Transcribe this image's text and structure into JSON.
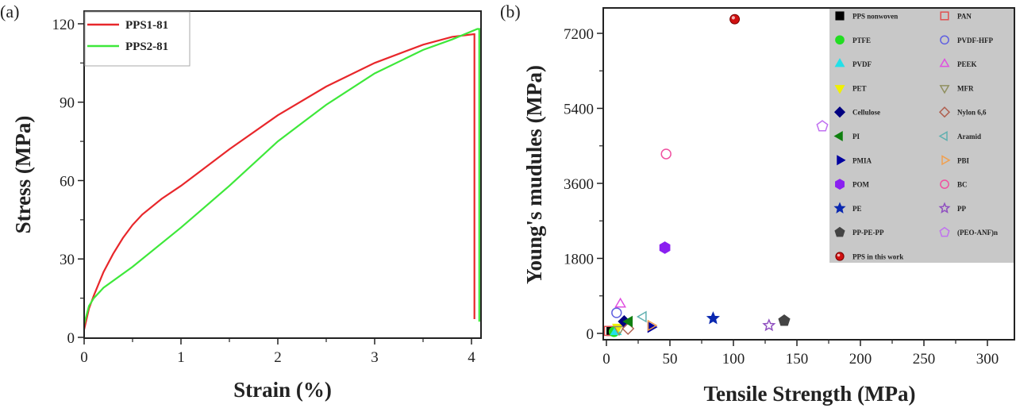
{
  "chart_data": [
    {
      "panel_label": "(a)",
      "type": "line",
      "xlabel": "Strain (%)",
      "ylabel": "Stress (MPa)",
      "xlim": [
        0,
        4.1
      ],
      "ylim": [
        0,
        125
      ],
      "xticks": [
        "0",
        "1",
        "2",
        "3",
        "4"
      ],
      "yticks": [
        "0",
        "30",
        "60",
        "90",
        "120"
      ],
      "legend_position": "top-left",
      "grid": false,
      "series": [
        {
          "name": "PPS1-81",
          "color": "#e8272b",
          "x": [
            0,
            0.05,
            0.1,
            0.2,
            0.3,
            0.4,
            0.5,
            0.6,
            0.8,
            1.0,
            1.5,
            2.0,
            2.5,
            3.0,
            3.5,
            3.8,
            4.02,
            4.03,
            4.03
          ],
          "y": [
            3,
            11,
            16,
            25,
            32,
            38,
            43,
            47,
            53,
            58,
            72,
            85,
            96,
            105,
            112,
            115,
            116,
            116,
            7
          ]
        },
        {
          "name": "PPS2-81",
          "color": "#3ee83a",
          "x": [
            0,
            0.05,
            0.1,
            0.2,
            0.5,
            1.0,
            1.5,
            2.0,
            2.5,
            3.0,
            3.5,
            3.8,
            4.06,
            4.08,
            4.08
          ],
          "y": [
            5,
            12,
            15,
            19,
            27,
            42,
            58,
            75,
            89,
            101,
            110,
            114,
            118,
            118,
            6
          ]
        }
      ]
    },
    {
      "panel_label": "(b)",
      "type": "scatter",
      "xlabel": "Tensile Strength (MPa)",
      "ylabel": "Young's mudules (MPa)",
      "xlim": [
        -2,
        322
      ],
      "ylim": [
        -150,
        7700
      ],
      "xticks": [
        "0",
        "50",
        "100",
        "150",
        "200",
        "250",
        "300"
      ],
      "yticks": [
        "0",
        "1800",
        "3600",
        "5400",
        "7200"
      ],
      "legend_position": "top-right",
      "legend_background": "#c8c8c8",
      "grid": false,
      "series": [
        {
          "name": "PPS nonwoven",
          "marker": "square",
          "filled": true,
          "color": "#000000",
          "x": [
            4
          ],
          "y": [
            60
          ]
        },
        {
          "name": "PAN",
          "marker": "square",
          "filled": false,
          "color": "#e05050",
          "x": [
            2
          ],
          "y": [
            60
          ]
        },
        {
          "name": "PTFE",
          "marker": "circle",
          "filled": true,
          "color": "#22dd22",
          "x": [
            6
          ],
          "y": [
            40
          ]
        },
        {
          "name": "PVDF-HFP",
          "marker": "circle",
          "filled": false,
          "color": "#6060e0",
          "x": [
            8
          ],
          "y": [
            495
          ]
        },
        {
          "name": "PVDF",
          "marker": "triangle-up",
          "filled": true,
          "color": "#22e0e8",
          "x": [
            7.5
          ],
          "y": [
            40
          ]
        },
        {
          "name": "PEEK",
          "marker": "triangle-up",
          "filled": false,
          "color": "#e050e0",
          "x": [
            11
          ],
          "y": [
            700
          ]
        },
        {
          "name": "PET",
          "marker": "triangle-down",
          "filled": true,
          "color": "#f0f000",
          "x": [
            9
          ],
          "y": [
            150
          ]
        },
        {
          "name": "MFR",
          "marker": "triangle-down",
          "filled": false,
          "color": "#909060",
          "x": [
            10
          ],
          "y": [
            95
          ]
        },
        {
          "name": "Cellulose",
          "marker": "diamond",
          "filled": true,
          "color": "#000080",
          "x": [
            14
          ],
          "y": [
            285
          ]
        },
        {
          "name": "Nylon 6,6",
          "marker": "diamond",
          "filled": false,
          "color": "#b06050",
          "x": [
            17
          ],
          "y": [
            115
          ]
        },
        {
          "name": "PI",
          "marker": "triangle-left",
          "filled": true,
          "color": "#108010",
          "x": [
            18
          ],
          "y": [
            285
          ]
        },
        {
          "name": "Aramid",
          "marker": "triangle-left",
          "filled": false,
          "color": "#60b0b0",
          "x": [
            29
          ],
          "y": [
            400
          ]
        },
        {
          "name": "PMIA",
          "marker": "triangle-right",
          "filled": true,
          "color": "#0000a0",
          "x": [
            35
          ],
          "y": [
            150
          ]
        },
        {
          "name": "PBI",
          "marker": "triangle-right",
          "filled": false,
          "color": "#f0a050",
          "x": [
            35
          ],
          "y": [
            190
          ]
        },
        {
          "name": "POM",
          "marker": "hexagon",
          "filled": true,
          "color": "#8a20f0",
          "x": [
            46
          ],
          "y": [
            2057
          ]
        },
        {
          "name": "BC",
          "marker": "circle",
          "filled": false,
          "color": "#f050a0",
          "x": [
            47
          ],
          "y": [
            4305
          ]
        },
        {
          "name": "PE",
          "marker": "star",
          "filled": true,
          "color": "#0a28b0",
          "x": [
            84
          ],
          "y": [
            360
          ]
        },
        {
          "name": "PP",
          "marker": "star",
          "filled": false,
          "color": "#9050c0",
          "x": [
            128
          ],
          "y": [
            190
          ]
        },
        {
          "name": "PP-PE-PP",
          "marker": "pentagon",
          "filled": true,
          "color": "#444444",
          "x": [
            140
          ],
          "y": [
            305
          ]
        },
        {
          "name": "(PEO-ANF)n",
          "marker": "pentagon",
          "filled": false,
          "color": "#c070f0",
          "x": [
            170
          ],
          "y": [
            4970
          ]
        },
        {
          "name": "PPS in this work",
          "marker": "sphere",
          "filled": true,
          "color": "#d01010",
          "x": [
            101
          ],
          "y": [
            7540
          ]
        }
      ]
    }
  ]
}
